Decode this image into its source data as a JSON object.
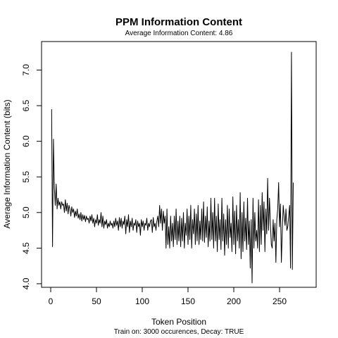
{
  "chart_data": {
    "type": "line",
    "title": "PPM Information Content",
    "subtitle": "Average Information Content: 4.86",
    "xlabel": "Token Position",
    "ylabel": "Average Information Content (bits)",
    "caption": "Train on: 3000 occurences, Decay: TRUE",
    "xlim": [
      -10,
      290
    ],
    "ylim": [
      3.95,
      7.4
    ],
    "x_ticks": [
      0,
      50,
      100,
      150,
      200,
      250
    ],
    "y_ticks": [
      4.0,
      4.5,
      5.0,
      5.5,
      6.0,
      6.5,
      7.0
    ],
    "x_tick_labels": [
      "0",
      "50",
      "100",
      "150",
      "200",
      "250"
    ],
    "y_tick_labels": [
      "4.0",
      "4.5",
      "5.0",
      "5.5",
      "6.0",
      "6.5",
      "7.0"
    ],
    "grid": false,
    "series": [
      {
        "x_start": 1,
        "x_step": 1,
        "values": [
          6.45,
          4.52,
          6.03,
          5.35,
          5.1,
          5.4,
          5.05,
          5.2,
          5.1,
          5.15,
          5.05,
          5.15,
          5.1,
          5.12,
          5.0,
          5.18,
          5.02,
          5.13,
          4.98,
          5.1,
          5.05,
          4.95,
          5.08,
          5.0,
          5.05,
          4.93,
          5.02,
          4.95,
          5.05,
          4.92,
          4.98,
          4.9,
          5.0,
          4.88,
          4.97,
          4.9,
          4.96,
          4.87,
          4.95,
          4.9,
          4.92,
          4.85,
          4.95,
          4.88,
          4.97,
          4.85,
          4.92,
          4.8,
          4.9,
          4.85,
          4.97,
          4.82,
          4.9,
          4.85,
          5.0,
          4.8,
          4.95,
          4.78,
          4.88,
          4.83,
          4.9,
          4.78,
          4.85,
          4.8,
          4.88,
          4.82,
          4.85,
          4.78,
          4.88,
          4.8,
          4.92,
          4.82,
          4.88,
          4.75,
          4.93,
          4.8,
          4.92,
          4.78,
          4.88,
          4.83,
          4.95,
          4.7,
          4.9,
          4.8,
          4.97,
          4.72,
          4.88,
          4.8,
          4.92,
          4.75,
          4.85,
          4.82,
          4.9,
          4.72,
          4.88,
          4.8,
          4.85,
          4.68,
          4.9,
          4.8,
          4.88,
          4.75,
          4.85,
          4.82,
          4.92,
          4.75,
          4.85,
          4.8,
          4.88,
          4.9,
          4.72,
          4.93,
          4.8,
          4.85,
          4.75,
          4.88,
          4.95,
          4.8,
          5.1,
          4.85,
          5.05,
          4.75,
          5.02,
          4.85,
          4.95,
          4.5,
          5.05,
          4.55,
          4.8,
          4.5,
          4.95,
          4.6,
          4.85,
          4.52,
          4.95,
          4.62,
          5.05,
          4.55,
          4.88,
          4.6,
          4.95,
          4.52,
          4.92,
          4.6,
          5.0,
          4.5,
          4.85,
          4.68,
          5.05,
          4.55,
          4.95,
          4.62,
          5.1,
          4.5,
          4.9,
          4.7,
          5.05,
          4.55,
          4.98,
          4.6,
          5.1,
          4.55,
          4.88,
          4.62,
          5.05,
          4.6,
          5.15,
          4.58,
          4.95,
          4.65,
          5.08,
          4.52,
          4.88,
          4.6,
          5.2,
          4.62,
          5.0,
          4.5,
          5.2,
          4.6,
          4.95,
          4.45,
          5.12,
          4.62,
          4.9,
          4.48,
          5.2,
          4.6,
          4.98,
          4.4,
          4.9,
          4.55,
          5.1,
          4.5,
          5.05,
          4.65,
          4.85,
          4.45,
          5.22,
          4.55,
          5.02,
          4.42,
          5.1,
          4.6,
          4.9,
          4.5,
          5.28,
          4.35,
          5.0,
          4.45,
          5.15,
          4.6,
          4.92,
          4.48,
          5.2,
          4.55,
          4.88,
          4.22,
          4.9,
          4.01,
          5.2,
          4.5,
          5.0,
          4.6,
          4.75,
          4.5,
          5.18,
          4.45,
          5.1,
          4.55,
          5.28,
          4.75,
          5.15,
          4.45,
          5.05,
          4.7,
          5.48,
          4.75,
          5.2,
          4.85,
          4.55,
          4.5,
          4.9,
          4.6,
          4.85,
          4.3,
          4.9,
          5.05,
          5.42,
          4.8,
          5.12,
          4.3,
          4.75,
          5.1,
          4.95,
          4.82,
          5.05,
          4.75,
          4.8,
          4.95,
          5.1,
          4.22,
          7.25,
          4.2,
          5.42
        ]
      }
    ]
  }
}
